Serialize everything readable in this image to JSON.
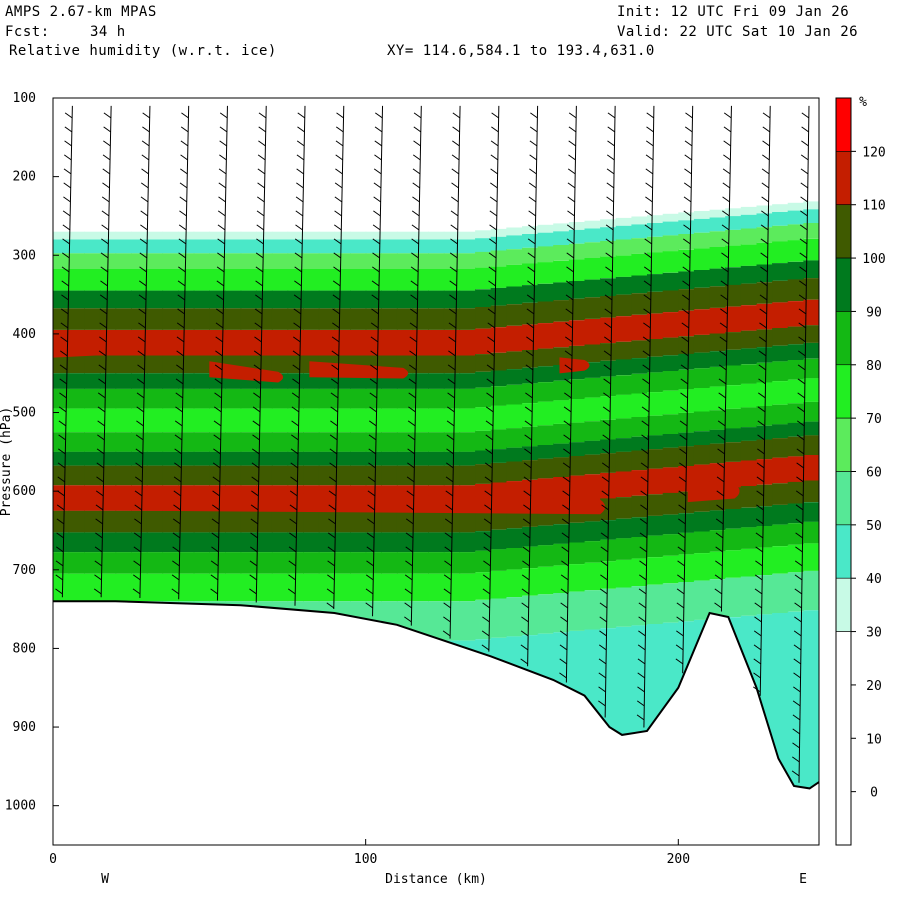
{
  "header": {
    "model": "AMPS 2.67-km MPAS",
    "fcst_label": "Fcst:",
    "fcst_value": "34 h",
    "field": "Relative humidity (w.r.t. ice)",
    "init": "Init: 12 UTC Fri 09 Jan 26",
    "valid": "Valid: 22 UTC Sat 10 Jan 26",
    "xy": "XY= 114.6,584.1 to 193.4,631.0"
  },
  "chart_data": {
    "type": "heatmap",
    "title": "Relative humidity (w.r.t. ice)",
    "xlabel": "Distance (km)",
    "ylabel": "Pressure (hPa)",
    "x_range": [
      0,
      245
    ],
    "y_range": [
      1050,
      100
    ],
    "x_ticks": [
      "0",
      "100",
      "200"
    ],
    "y_ticks": [
      "100",
      "200",
      "300",
      "400",
      "500",
      "600",
      "700",
      "800",
      "900",
      "1000"
    ],
    "x_end_labels": {
      "west": "W",
      "east": "E"
    },
    "colorbar": {
      "unit": "%",
      "labels": [
        "120",
        "110",
        "100",
        "90",
        "80",
        "70",
        "60",
        "50",
        "40",
        "30",
        "20",
        "10",
        "0"
      ],
      "levels": [
        {
          "min": 120,
          "color": "#ff0000"
        },
        {
          "min": 110,
          "color": "#c41e00"
        },
        {
          "min": 100,
          "color": "#3f5a00"
        },
        {
          "min": 90,
          "color": "#007a1e"
        },
        {
          "min": 80,
          "color": "#14b814"
        },
        {
          "min": 70,
          "color": "#22ee22"
        },
        {
          "min": 60,
          "color": "#5ceb5c"
        },
        {
          "min": 50,
          "color": "#56e896"
        },
        {
          "min": 40,
          "color": "#4ae8c8"
        },
        {
          "min": 30,
          "color": "#c8fae6"
        },
        {
          "min": 0,
          "color": "#ffffff"
        }
      ]
    },
    "rh_profile_west_to_center": [
      {
        "p": 270,
        "rh": 30
      },
      {
        "p": 290,
        "rh": 45
      },
      {
        "p": 305,
        "rh": 60
      },
      {
        "p": 330,
        "rh": 75
      },
      {
        "p": 360,
        "rh": 95
      },
      {
        "p": 375,
        "rh": 105
      },
      {
        "p": 415,
        "rh": 112
      },
      {
        "p": 440,
        "rh": 105
      },
      {
        "p": 460,
        "rh": 95
      },
      {
        "p": 480,
        "rh": 85
      },
      {
        "p": 510,
        "rh": 75
      },
      {
        "p": 540,
        "rh": 85
      },
      {
        "p": 560,
        "rh": 95
      },
      {
        "p": 575,
        "rh": 105
      },
      {
        "p": 610,
        "rh": 114
      },
      {
        "p": 640,
        "rh": 105
      },
      {
        "p": 665,
        "rh": 95
      },
      {
        "p": 690,
        "rh": 80
      },
      {
        "p": 720,
        "rh": 70
      },
      {
        "p": 760,
        "rh": 55
      },
      {
        "p": 820,
        "rh": 45
      }
    ],
    "saturated_cores": [
      {
        "x": [
          0,
          17
        ],
        "p": [
          420,
          420
        ],
        "rh": 112
      },
      {
        "x": [
          50,
          72
        ],
        "p": [
          445,
          455
        ],
        "rh": 112
      },
      {
        "x": [
          82,
          112
        ],
        "p": [
          445,
          450
        ],
        "rh": 112
      },
      {
        "x": [
          162,
          170
        ],
        "p": [
          440,
          440
        ],
        "rh": 112
      },
      {
        "x": [
          0,
          175
        ],
        "p": [
          610,
          620
        ],
        "rh": 114
      },
      {
        "x": [
          203,
          218
        ],
        "p": [
          600,
          600
        ],
        "rh": 114
      }
    ],
    "terrain_surface_pressure": [
      {
        "x": 0,
        "p": 740
      },
      {
        "x": 20,
        "p": 740
      },
      {
        "x": 60,
        "p": 745
      },
      {
        "x": 90,
        "p": 755
      },
      {
        "x": 110,
        "p": 770
      },
      {
        "x": 140,
        "p": 810
      },
      {
        "x": 160,
        "p": 840
      },
      {
        "x": 170,
        "p": 860
      },
      {
        "x": 178,
        "p": 900
      },
      {
        "x": 182,
        "p": 910
      },
      {
        "x": 190,
        "p": 905
      },
      {
        "x": 200,
        "p": 850
      },
      {
        "x": 210,
        "p": 755
      },
      {
        "x": 216,
        "p": 760
      },
      {
        "x": 225,
        "p": 850
      },
      {
        "x": 232,
        "p": 940
      },
      {
        "x": 237,
        "p": 975
      },
      {
        "x": 242,
        "p": 978
      },
      {
        "x": 245,
        "p": 970
      }
    ],
    "wind_barbs": "vertical columns of wind barbs plotted along the cross-section, light winds circled near the surface"
  }
}
